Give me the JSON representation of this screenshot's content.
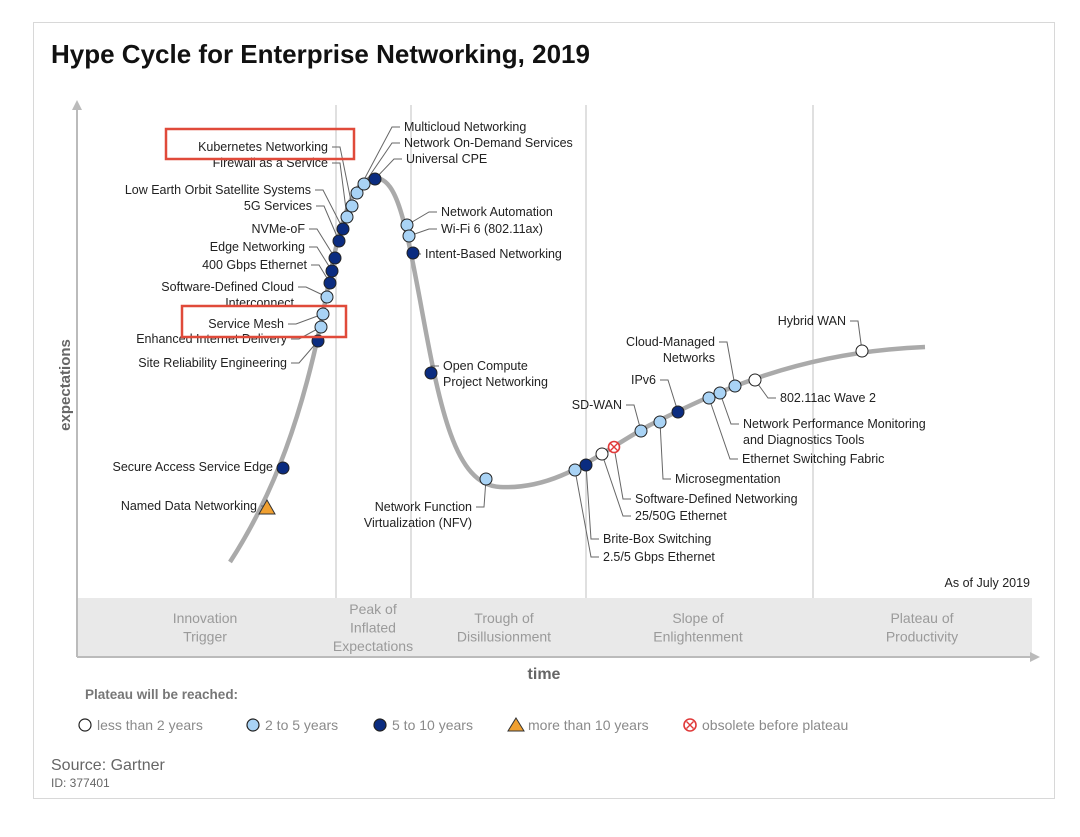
{
  "chart_data": {
    "type": "scatter",
    "title": "Hype Cycle for Enterprise Networking, 2019",
    "xlabel": "time",
    "ylabel": "expectations",
    "as_of": "As of July 2019",
    "phases": [
      "Innovation Trigger",
      "Peak of Inflated Expectations",
      "Trough of Disillusionment",
      "Slope of Enlightenment",
      "Plateau of Productivity"
    ],
    "phase_labels": [
      [
        "Innovation",
        "Trigger"
      ],
      [
        "Peak of",
        "Inflated",
        "Expectations"
      ],
      [
        "Trough of",
        "Disillusionment"
      ],
      [
        "Slope of",
        "Enlightenment"
      ],
      [
        "Plateau of",
        "Productivity"
      ]
    ],
    "legend_title": "Plateau will be reached:",
    "legend": [
      {
        "key": "lt2",
        "label": "less than 2 years",
        "color": "#ffffff",
        "shape": "circle"
      },
      {
        "key": "2to5",
        "label": "2 to 5 years",
        "color": "#a9d3f5",
        "shape": "circle"
      },
      {
        "key": "5to10",
        "label": "5 to 10 years",
        "color": "#0b2c80",
        "shape": "circle"
      },
      {
        "key": "gt10",
        "label": "more than 10 years",
        "color": "#f0a030",
        "shape": "triangle"
      },
      {
        "key": "obsolete",
        "label": "obsolete before plateau",
        "color": "#e03a3a",
        "shape": "circled-x"
      }
    ],
    "points": [
      {
        "label": [
          "Named Data Networking"
        ],
        "plateau": "gt10",
        "phase": "Innovation Trigger"
      },
      {
        "label": [
          "Secure Access Service Edge"
        ],
        "plateau": "5to10",
        "phase": "Innovation Trigger"
      },
      {
        "label": [
          "Site Reliability Engineering"
        ],
        "plateau": "5to10",
        "phase": "Innovation Trigger"
      },
      {
        "label": [
          "Enhanced Internet Delivery"
        ],
        "plateau": "2to5",
        "phase": "Innovation Trigger",
        "highlighted": false
      },
      {
        "label": [
          "Service Mesh"
        ],
        "plateau": "2to5",
        "phase": "Innovation Trigger",
        "highlighted": true
      },
      {
        "label": [
          "Software-Defined Cloud",
          "Interconnect"
        ],
        "plateau": "2to5",
        "phase": "Innovation Trigger"
      },
      {
        "label": [
          "400 Gbps Ethernet"
        ],
        "plateau": "5to10",
        "phase": "Innovation Trigger"
      },
      {
        "label": [
          "Edge Networking"
        ],
        "plateau": "5to10",
        "phase": "Innovation Trigger"
      },
      {
        "label": [
          "NVMe-oF"
        ],
        "plateau": "5to10",
        "phase": "Innovation Trigger"
      },
      {
        "label": [
          "5G Services"
        ],
        "plateau": "5to10",
        "phase": "Peak of Inflated Expectations"
      },
      {
        "label": [
          "Low Earth Orbit Satellite Systems"
        ],
        "plateau": "5to10",
        "phase": "Peak of Inflated Expectations"
      },
      {
        "label": [
          "Firewall as a Service"
        ],
        "plateau": "2to5",
        "phase": "Peak of Inflated Expectations"
      },
      {
        "label": [
          "Kubernetes Networking"
        ],
        "plateau": "2to5",
        "phase": "Peak of Inflated Expectations",
        "highlighted": true
      },
      {
        "label": [
          "Multicloud Networking"
        ],
        "plateau": "2to5",
        "phase": "Peak of Inflated Expectations"
      },
      {
        "label": [
          "Network On-Demand Services"
        ],
        "plateau": "2to5",
        "phase": "Peak of Inflated Expectations"
      },
      {
        "label": [
          "Universal CPE"
        ],
        "plateau": "5to10",
        "phase": "Peak of Inflated Expectations"
      },
      {
        "label": [
          "Network Automation"
        ],
        "plateau": "2to5",
        "phase": "Trough of Disillusionment"
      },
      {
        "label": [
          "Wi-Fi 6 (802.11ax)"
        ],
        "plateau": "2to5",
        "phase": "Trough of Disillusionment"
      },
      {
        "label": [
          "Intent-Based Networking"
        ],
        "plateau": "5to10",
        "phase": "Trough of Disillusionment"
      },
      {
        "label": [
          "Open Compute",
          "Project Networking"
        ],
        "plateau": "5to10",
        "phase": "Trough of Disillusionment"
      },
      {
        "label": [
          "Network Function",
          "Virtualization (NFV)"
        ],
        "plateau": "2to5",
        "phase": "Trough of Disillusionment"
      },
      {
        "label": [
          "2.5/5 Gbps Ethernet"
        ],
        "plateau": "2to5",
        "phase": "Slope of Enlightenment"
      },
      {
        "label": [
          "Brite-Box Switching"
        ],
        "plateau": "5to10",
        "phase": "Slope of Enlightenment"
      },
      {
        "label": [
          "25/50G Ethernet"
        ],
        "plateau": "lt2",
        "phase": "Slope of Enlightenment"
      },
      {
        "label": [
          "Software-Defined Networking"
        ],
        "plateau": "obsolete",
        "phase": "Slope of Enlightenment"
      },
      {
        "label": [
          "SD-WAN"
        ],
        "plateau": "2to5",
        "phase": "Slope of Enlightenment"
      },
      {
        "label": [
          "Microsegmentation"
        ],
        "plateau": "2to5",
        "phase": "Slope of Enlightenment"
      },
      {
        "label": [
          "IPv6"
        ],
        "plateau": "5to10",
        "phase": "Slope of Enlightenment"
      },
      {
        "label": [
          "Ethernet Switching Fabric"
        ],
        "plateau": "2to5",
        "phase": "Slope of Enlightenment"
      },
      {
        "label": [
          "Network Performance Monitoring",
          "and Diagnostics Tools"
        ],
        "plateau": "2to5",
        "phase": "Slope of Enlightenment"
      },
      {
        "label": [
          "Cloud-Managed",
          "Networks"
        ],
        "plateau": "2to5",
        "phase": "Slope of Enlightenment"
      },
      {
        "label": [
          "802.11ac Wave 2"
        ],
        "plateau": "lt2",
        "phase": "Slope of Enlightenment"
      },
      {
        "label": [
          "Hybrid WAN"
        ],
        "plateau": "lt2",
        "phase": "Plateau of Productivity"
      }
    ]
  },
  "footer": {
    "source": "Source: Gartner",
    "id": "ID: 377401"
  }
}
